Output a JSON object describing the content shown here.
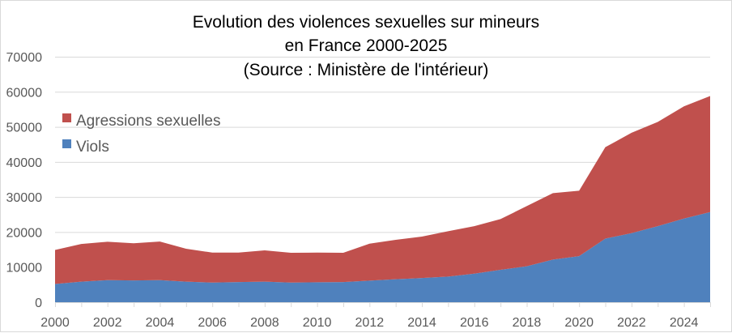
{
  "chart_data": {
    "type": "area",
    "stacked": true,
    "title": [
      "Evolution des violences sexuelles sur mineurs",
      "en France 2000-2025",
      "(Source : Ministère de l'intérieur)"
    ],
    "xlabel": "",
    "ylabel": "",
    "x": [
      2000,
      2001,
      2002,
      2003,
      2004,
      2005,
      2006,
      2007,
      2008,
      2009,
      2010,
      2011,
      2012,
      2013,
      2014,
      2015,
      2016,
      2017,
      2018,
      2019,
      2020,
      2021,
      2022,
      2023,
      2024,
      2025
    ],
    "x_tick_labels": [
      "2000",
      "2002",
      "2004",
      "2006",
      "2008",
      "2010",
      "2012",
      "2014",
      "2016",
      "2018",
      "2020",
      "2022",
      "2024"
    ],
    "ylim": [
      0,
      70000
    ],
    "y_ticks": [
      0,
      10000,
      20000,
      30000,
      40000,
      50000,
      60000,
      70000
    ],
    "y_tick_labels": [
      "0",
      "10000",
      "20000",
      "30000",
      "40000",
      "50000",
      "60000",
      "70000"
    ],
    "grid": true,
    "legend_position": "top-left",
    "series": [
      {
        "name": "Viols",
        "color": "#4F81BD",
        "values": [
          5200,
          5850,
          6300,
          6200,
          6300,
          5850,
          5600,
          5750,
          5850,
          5600,
          5700,
          5750,
          6150,
          6550,
          6900,
          7300,
          8150,
          9250,
          10250,
          12150,
          13150,
          18150,
          19700,
          21700,
          23850,
          25700
        ]
      },
      {
        "name": "Agressions sexuelles",
        "color": "#C0504D",
        "values": [
          9700,
          10750,
          10950,
          10600,
          11000,
          9400,
          8550,
          8400,
          8950,
          8500,
          8450,
          8350,
          10550,
          11250,
          11800,
          12950,
          13550,
          14450,
          17150,
          18950,
          18650,
          26050,
          28600,
          29700,
          32000,
          33100
        ]
      }
    ],
    "legend": [
      {
        "label": "Agressions sexuelles",
        "color": "#C0504D"
      },
      {
        "label": "Viols",
        "color": "#4F81BD"
      }
    ]
  }
}
